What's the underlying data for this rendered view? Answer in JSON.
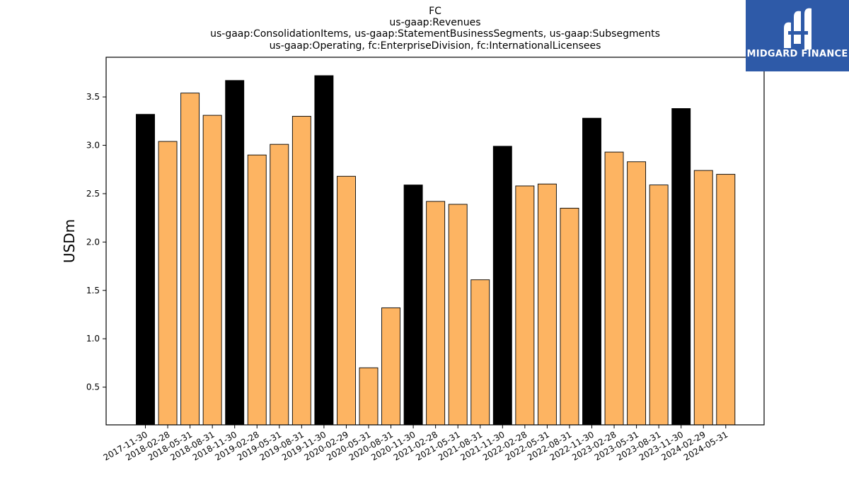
{
  "title_lines": [
    "FC",
    "us-gaap:Revenues",
    "us-gaap:ConsolidationItems, us-gaap:StatementBusinessSegments, us-gaap:Subsegments",
    "us-gaap:Operating, fc:EnterpriseDivision, fc:InternationalLicensees"
  ],
  "logo": {
    "text": "MIDGARD FINANCE",
    "background": "#2e5aa8",
    "icon": "midgard-monogram-icon"
  },
  "colors": {
    "annual": "#000000",
    "quarter": "#fdb462",
    "edge": "#000000"
  },
  "chart_data": {
    "type": "bar",
    "title": "FC\nus-gaap:Revenues\nus-gaap:ConsolidationItems, us-gaap:StatementBusinessSegments, us-gaap:Subsegments\nus-gaap:Operating, fc:EnterpriseDivision, fc:InternationalLicensees",
    "xlabel": "",
    "ylabel": "USDm",
    "ylim": [
      0.11,
      3.91
    ],
    "yticks": [
      0.5,
      1.0,
      1.5,
      2.0,
      2.5,
      3.0,
      3.5
    ],
    "grid": false,
    "categories": [
      "2017-11-30",
      "2018-02-28",
      "2018-05-31",
      "2018-08-31",
      "2018-11-30",
      "2019-02-28",
      "2019-05-31",
      "2019-08-31",
      "2019-11-30",
      "2020-02-29",
      "2020-05-31",
      "2020-08-31",
      "2020-11-30",
      "2021-02-28",
      "2021-05-31",
      "2021-08-31",
      "2021-11-30",
      "2022-02-28",
      "2022-05-31",
      "2022-08-31",
      "2022-11-30",
      "2023-02-28",
      "2023-05-31",
      "2023-08-31",
      "2023-11-30",
      "2024-02-29",
      "2024-05-31"
    ],
    "values": [
      3.32,
      3.04,
      3.54,
      3.31,
      3.67,
      2.9,
      3.01,
      3.3,
      3.72,
      2.68,
      0.7,
      1.32,
      2.59,
      2.42,
      2.39,
      1.61,
      2.99,
      2.58,
      2.6,
      2.35,
      3.28,
      2.93,
      2.83,
      2.59,
      3.38,
      2.74,
      2.7
    ],
    "period_type": [
      "annual",
      "quarter",
      "quarter",
      "quarter",
      "annual",
      "quarter",
      "quarter",
      "quarter",
      "annual",
      "quarter",
      "quarter",
      "quarter",
      "annual",
      "quarter",
      "quarter",
      "quarter",
      "annual",
      "quarter",
      "quarter",
      "quarter",
      "annual",
      "quarter",
      "quarter",
      "quarter",
      "annual",
      "quarter",
      "quarter"
    ]
  }
}
